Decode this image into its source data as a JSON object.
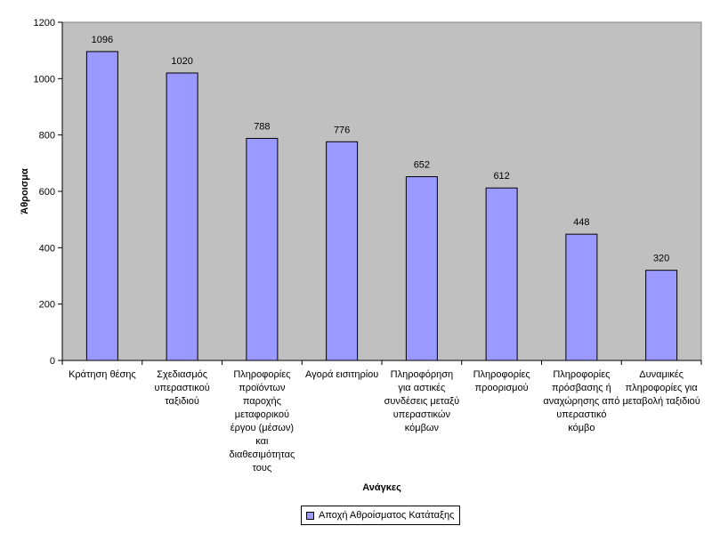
{
  "chart_data": {
    "type": "bar",
    "title": "",
    "xlabel": "Ανάγκες",
    "ylabel": "Άθροισμα",
    "ylim": [
      0,
      1200
    ],
    "yticks": [
      0,
      200,
      400,
      600,
      800,
      1000,
      1200
    ],
    "grid": false,
    "legend_position": "bottom",
    "categories": [
      [
        "Κράτηση θέσης"
      ],
      [
        "Σχεδιασμός",
        "υπεραστικού",
        "ταξιδιού"
      ],
      [
        "Πληροφορίες",
        "προϊόντων",
        "παροχής",
        "μεταφορικού",
        "έργου (μέσων)",
        "και",
        "διαθεσιμότητας",
        "τους"
      ],
      [
        "Αγορά εισιτηρίου"
      ],
      [
        "Πληροφόρηση",
        "για αστικές",
        "συνδέσεις μεταξύ",
        "υπεραστικών",
        "κόμβων"
      ],
      [
        "Πληροφορίες",
        "προορισμού"
      ],
      [
        "Πληροφορίες",
        "πρόσβασης ή",
        "αναχώρησης από",
        "υπεραστικό",
        "κόμβο"
      ],
      [
        "Δυναμικές",
        "πληροφορίες για",
        "μεταβολή ταξιδιού"
      ]
    ],
    "series": [
      {
        "name": "Αποχή Αθροίσματος Κατάταξης",
        "color": "#9999ff",
        "values": [
          1096,
          1020,
          788,
          776,
          652,
          612,
          448,
          320
        ]
      }
    ],
    "plot_background": "#c0c0c0"
  }
}
